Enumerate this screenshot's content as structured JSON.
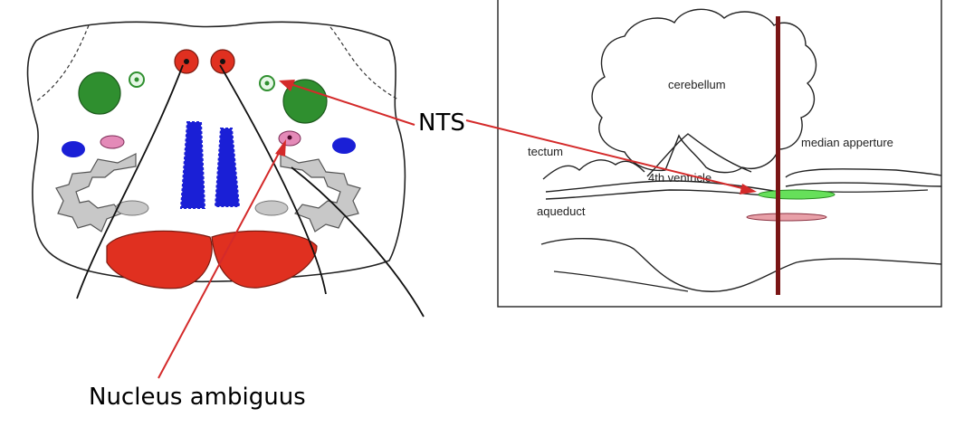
{
  "labels": {
    "nts": "NTS",
    "nucleus_ambiguus": "Nucleus ambiguus",
    "cerebellum": "cerebellum",
    "tectum": "tectum",
    "median_apperture": "median apperture",
    "fourth_ventricle": "4th ventricle",
    "aqueduct": "aqueduct"
  },
  "colors": {
    "nts_nucleus": "#2f8f2f",
    "nucleus_ambiguus": "#e48ab8",
    "pyramid": "#1a1fd6",
    "red_nucleus": "#e03020",
    "arrow": "#d42a2a",
    "probe": "#7a1515",
    "green_slab": "#66e05a",
    "pink_slab": "#e8a0a8"
  }
}
